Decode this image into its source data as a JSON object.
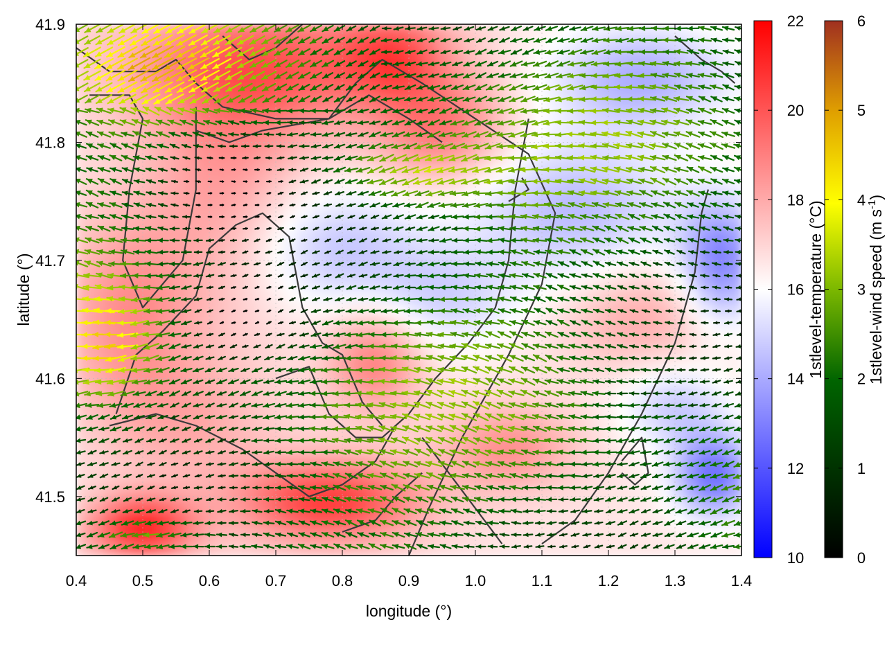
{
  "chart_data": {
    "type": "heatmap",
    "title": "",
    "xlabel": "longitude (°)",
    "ylabel": "latitude (°)",
    "xlim": [
      0.4,
      1.4
    ],
    "ylim": [
      41.45,
      41.9
    ],
    "x_ticks": [
      "0.4",
      "0.5",
      "0.6",
      "0.7",
      "0.8",
      "0.9",
      "1.0",
      "1.1",
      "1.2",
      "1.3",
      "1.4"
    ],
    "y_ticks": [
      "41.5",
      "41.6",
      "41.7",
      "41.8",
      "41.9"
    ],
    "grid": true,
    "series": [
      {
        "name": "1stlevel-temperature (°C)",
        "kind": "heatmap",
        "colorbar_ticks": [
          "10",
          "12",
          "14",
          "16",
          "18",
          "20",
          "22"
        ],
        "range": [
          10,
          22
        ],
        "colors": [
          "#0000ff",
          "#ffffff",
          "#ff0000"
        ]
      },
      {
        "name": "1stlevel-wind speed (m s-1)",
        "kind": "vector",
        "colorbar_ticks": [
          "0",
          "1",
          "2",
          "3",
          "4",
          "5",
          "6"
        ],
        "range": [
          0,
          6
        ],
        "colors": [
          "#000000",
          "#006400",
          "#7cb800",
          "#ffff00",
          "#e0a000",
          "#a03020"
        ],
        "predominant_direction": "westward"
      }
    ],
    "colorbar1_title": "1stlevel-temperature (°C)",
    "colorbar2_title_main": "1stlevel-wind speed (m s",
    "colorbar2_title_sup": "-1",
    "colorbar2_title_end": ")",
    "legend_position": "right"
  }
}
